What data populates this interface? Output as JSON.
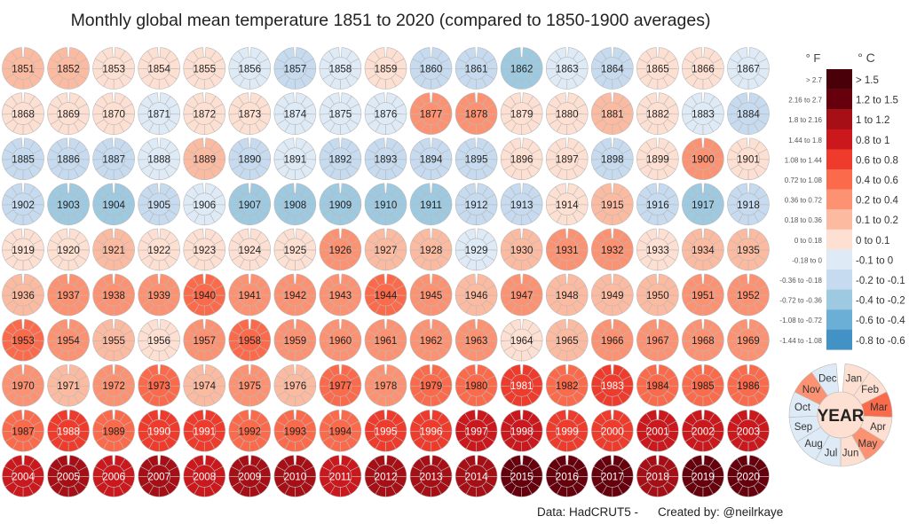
{
  "chart_data": {
    "type": "radial-heatmap",
    "title": "Monthly global mean temperature 1851 to 2020 (compared to 1850-1900 averages)",
    "unit": "°C",
    "years_start": 1851,
    "years_end": 2020,
    "annual_anomaly_c": [
      0.15,
      0.15,
      0.05,
      0.05,
      0.05,
      -0.05,
      -0.15,
      -0.05,
      0.05,
      -0.15,
      -0.1,
      -0.25,
      -0.05,
      -0.15,
      0.05,
      0.05,
      -0.05,
      0.05,
      0.05,
      0.05,
      -0.05,
      0.05,
      0.05,
      -0.05,
      -0.05,
      -0.05,
      0.3,
      0.35,
      0.05,
      0.05,
      0.15,
      0.05,
      -0.05,
      -0.15,
      -0.15,
      -0.15,
      -0.15,
      -0.05,
      0.15,
      -0.15,
      -0.05,
      -0.15,
      -0.15,
      -0.15,
      -0.15,
      0.05,
      0.05,
      -0.15,
      0.05,
      0.25,
      0.05,
      -0.15,
      -0.25,
      -0.25,
      -0.15,
      -0.05,
      -0.25,
      -0.25,
      -0.25,
      -0.25,
      -0.25,
      -0.15,
      -0.15,
      0.05,
      0.15,
      -0.15,
      -0.25,
      -0.15,
      0.05,
      0.05,
      0.15,
      0.05,
      0.05,
      0.05,
      0.05,
      0.25,
      0.15,
      0.15,
      -0.05,
      0.15,
      0.3,
      0.3,
      0.05,
      0.15,
      0.15,
      0.15,
      0.3,
      0.3,
      0.3,
      0.5,
      0.3,
      0.3,
      0.3,
      0.5,
      0.3,
      0.15,
      0.3,
      0.15,
      0.15,
      0.15,
      0.3,
      0.3,
      0.5,
      0.3,
      0.15,
      0.05,
      0.3,
      0.5,
      0.3,
      0.3,
      0.3,
      0.3,
      0.3,
      0.05,
      0.15,
      0.3,
      0.3,
      0.3,
      0.3,
      0.3,
      0.15,
      0.3,
      0.5,
      0.15,
      0.3,
      0.15,
      0.5,
      0.3,
      0.5,
      0.5,
      0.7,
      0.5,
      0.7,
      0.5,
      0.5,
      0.5,
      0.5,
      0.7,
      0.5,
      0.7,
      0.7,
      0.5,
      0.5,
      0.5,
      0.7,
      0.7,
      0.9,
      0.9,
      0.7,
      0.7,
      0.9,
      0.9,
      0.9,
      0.9,
      1.1,
      0.9,
      1.1,
      0.9,
      1.1,
      1.1,
      0.9,
      1.1,
      1.1,
      1.1,
      1.35,
      1.35,
      1.35,
      1.1,
      1.35,
      1.35
    ],
    "legend": {
      "f_header": "° F",
      "c_header": "° C",
      "bins": [
        {
          "f": "> 2.7",
          "c": "> 1.5",
          "color": "#4a0008"
        },
        {
          "f": "2.16 to 2.7",
          "c": "1.2 to 1.5",
          "color": "#67000d"
        },
        {
          "f": "1.8 to 2.16",
          "c": "1 to 1.2",
          "color": "#a50f15"
        },
        {
          "f": "1.44 to 1.8",
          "c": "0.8 to 1",
          "color": "#cb181d"
        },
        {
          "f": "1.08 to 1.44",
          "c": "0.6 to 0.8",
          "color": "#ef3b2c"
        },
        {
          "f": "0.72 to 1.08",
          "c": "0.4 to 0.6",
          "color": "#fb6a4a"
        },
        {
          "f": "0.36 to 0.72",
          "c": "0.2 to 0.4",
          "color": "#fc9272"
        },
        {
          "f": "0.18 to 0.36",
          "c": "0.1 to 0.2",
          "color": "#fcbba1"
        },
        {
          "f": "0 to 0.18",
          "c": "0 to 0.1",
          "color": "#fee0d2"
        },
        {
          "f": "-0.18 to 0",
          "c": "-0.1 to 0",
          "color": "#deebf7"
        },
        {
          "f": "-0.36 to -0.18",
          "c": "-0.2 to -0.1",
          "color": "#c6dbef"
        },
        {
          "f": "-0.72 to -0.36",
          "c": "-0.4 to -0.2",
          "color": "#9ecae1"
        },
        {
          "f": "-1.08 to -0.72",
          "c": "-0.6 to -0.4",
          "color": "#6baed6"
        },
        {
          "f": "-1.44 to -1.08",
          "c": "-0.8 to -0.6",
          "color": "#4292c6"
        }
      ]
    },
    "key": {
      "center_label": "YEAR",
      "center_value": 0.05,
      "months": [
        {
          "label": "Jan",
          "value": 0.05
        },
        {
          "label": "Feb",
          "value": 0.05
        },
        {
          "label": "Mar",
          "value": 0.5
        },
        {
          "label": "Apr",
          "value": 0.05
        },
        {
          "label": "May",
          "value": 0.3
        },
        {
          "label": "Jun",
          "value": 0.05
        },
        {
          "label": "Jul",
          "value": -0.05
        },
        {
          "label": "Aug",
          "value": -0.05
        },
        {
          "label": "Sep",
          "value": -0.05
        },
        {
          "label": "Oct",
          "value": -0.05
        },
        {
          "label": "Nov",
          "value": 0.3
        },
        {
          "label": "Dec",
          "value": -0.05
        }
      ]
    }
  },
  "footer": {
    "source": "Data: HadCRUT5 -",
    "credit": "Created by: @neilrkaye"
  }
}
